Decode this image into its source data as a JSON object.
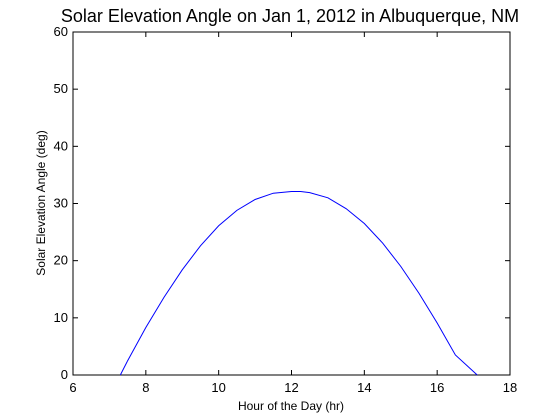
{
  "chart_data": {
    "type": "line",
    "title": "Solar Elevation Angle on Jan 1, 2012 in Albuquerque, NM",
    "xlabel": "Hour of the Day (hr)",
    "ylabel": "Solar Elevation Angle (deg)",
    "xlim": [
      6,
      18
    ],
    "ylim": [
      0,
      60
    ],
    "xticks": [
      6,
      8,
      10,
      12,
      14,
      16,
      18
    ],
    "yticks": [
      0,
      10,
      20,
      30,
      40,
      50,
      60
    ],
    "grid": false,
    "colors": {
      "line": "#0000ff",
      "axes": "#000000",
      "background": "#ffffff"
    },
    "series": [
      {
        "x": [
          7.3,
          7.5,
          8.0,
          8.5,
          9.0,
          9.5,
          10.0,
          10.5,
          11.0,
          11.5,
          12.0,
          12.25,
          12.5,
          13.0,
          13.5,
          14.0,
          14.5,
          15.0,
          15.5,
          16.0,
          16.5,
          17.1
        ],
        "y": [
          0.0,
          2.5,
          8.3,
          13.6,
          18.4,
          22.6,
          26.1,
          28.8,
          30.7,
          31.8,
          32.1,
          32.1,
          31.9,
          31.0,
          29.1,
          26.5,
          23.1,
          19.0,
          14.3,
          9.1,
          3.5,
          0.0
        ]
      }
    ]
  }
}
